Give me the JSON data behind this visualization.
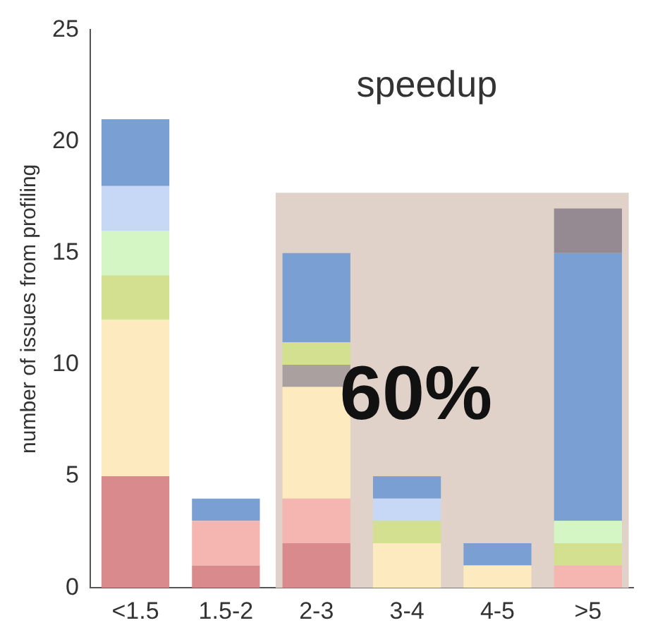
{
  "chart_data": {
    "type": "bar",
    "title": "speedup",
    "ylabel": "number of issues from profiling",
    "categories": [
      "<1.5",
      "1.5-2",
      "2-3",
      "3-4",
      "4-5",
      ">5"
    ],
    "stacked": true,
    "series": [
      {
        "color": "#d98a8c",
        "values": [
          5,
          1,
          2,
          0,
          0,
          0
        ]
      },
      {
        "color": "#f5b5b0",
        "values": [
          0,
          2,
          2,
          0,
          0,
          1
        ]
      },
      {
        "color": "#fdebbf",
        "values": [
          7,
          0,
          5,
          2,
          1,
          0
        ]
      },
      {
        "color": "#aaa0a0",
        "values": [
          0,
          0,
          1,
          0,
          0,
          0
        ]
      },
      {
        "color": "#d2e08f",
        "values": [
          2,
          0,
          1,
          1,
          0,
          1
        ]
      },
      {
        "color": "#d4f5c4",
        "values": [
          2,
          0,
          0,
          0,
          0,
          1
        ]
      },
      {
        "color": "#c6d8f5",
        "values": [
          2,
          0,
          0,
          1,
          0,
          0
        ]
      },
      {
        "color": "#7a9fd2",
        "values": [
          3,
          1,
          4,
          1,
          1,
          12
        ]
      },
      {
        "color": "#958a92",
        "values": [
          0,
          0,
          0,
          0,
          0,
          2
        ]
      }
    ],
    "ylim": [
      0,
      25
    ],
    "yticks": [
      0,
      5,
      10,
      15,
      20,
      25
    ],
    "grid": false,
    "legend": false,
    "bands": [
      {
        "axis": "x",
        "from": "2-3",
        "to": ">5",
        "color": "#e0d2c8"
      }
    ],
    "annotations": [
      "60%"
    ]
  }
}
